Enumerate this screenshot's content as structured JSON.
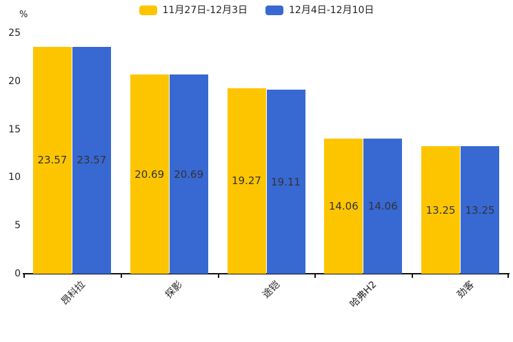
{
  "chart_data": {
    "type": "bar",
    "title": "",
    "unit_label": "%",
    "categories": [
      "昂科拉",
      "探影",
      "途铠",
      "哈弗H2",
      "劲客"
    ],
    "series": [
      {
        "name": "11月27日-12月3日",
        "color": "#FDC500",
        "values": [
          23.57,
          20.69,
          19.27,
          14.06,
          13.25
        ]
      },
      {
        "name": "12月4日-12月10日",
        "color": "#3868D2",
        "values": [
          23.57,
          20.69,
          19.11,
          14.06,
          13.25
        ]
      }
    ],
    "y_ticks": [
      0,
      5,
      10,
      15,
      20,
      25
    ],
    "ylim": [
      0,
      25
    ],
    "legend_position": "top-center",
    "grid": false,
    "value_label_position": "inside-center",
    "x_label_rotation_deg": 45
  },
  "colors": {
    "background": "#ffffff",
    "axis": "#111111",
    "text": "#222222",
    "value_label": "#333333"
  }
}
